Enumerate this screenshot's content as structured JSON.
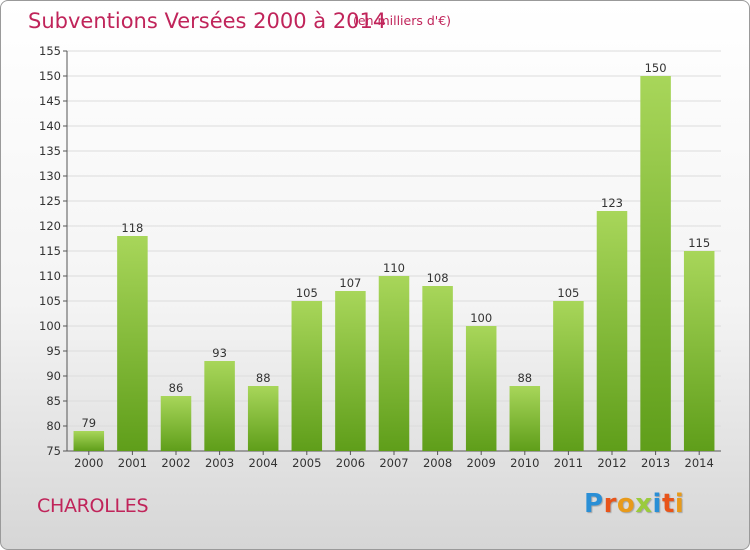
{
  "header": {
    "title": "Subventions Versées 2000 à 2014",
    "subtitle": "(en milliers d'€)"
  },
  "footer": {
    "city": "CHAROLLES",
    "logo": [
      "P",
      "r",
      "o",
      "x",
      "i",
      "t",
      "i"
    ],
    "logo_colors": [
      "#2a8fd6",
      "#e8541a",
      "#e89a1a",
      "#9bcb3c",
      "#2a8fd6",
      "#e8541a",
      "#e89a1a"
    ]
  },
  "colors": {
    "bar_top": "#a8d65a",
    "bar_bottom": "#5f9e1a",
    "grid": "#dcdcdc",
    "text_accent": "#c0245a"
  },
  "chart_data": {
    "type": "bar",
    "title": "Subventions Versées 2000 à 2014",
    "subtitle": "(en milliers d'€)",
    "xlabel": "",
    "ylabel": "",
    "categories": [
      "2000",
      "2001",
      "2002",
      "2003",
      "2004",
      "2005",
      "2006",
      "2007",
      "2008",
      "2009",
      "2010",
      "2011",
      "2012",
      "2013",
      "2014"
    ],
    "values": [
      79,
      118,
      86,
      93,
      88,
      105,
      107,
      110,
      108,
      100,
      88,
      105,
      123,
      150,
      115
    ],
    "ylim": [
      75,
      155
    ],
    "yticks": [
      75,
      80,
      85,
      90,
      95,
      100,
      105,
      110,
      115,
      120,
      125,
      130,
      135,
      140,
      145,
      150,
      155
    ],
    "grid": true
  }
}
